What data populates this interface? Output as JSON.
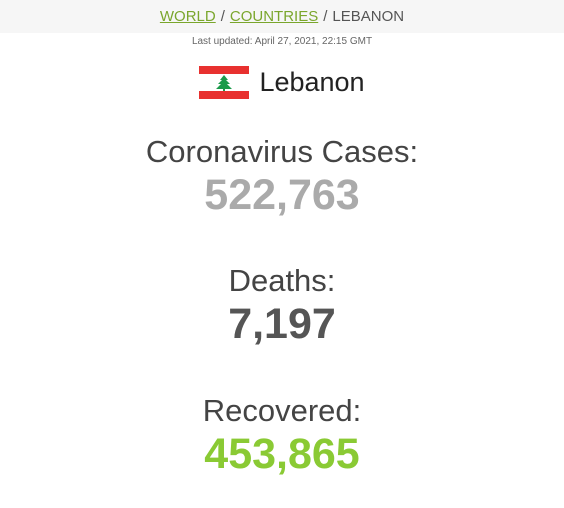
{
  "breadcrumb": {
    "world": "WORLD",
    "countries": "COUNTRIES",
    "current": "LEBANON",
    "separator": "/"
  },
  "last_updated": "Last updated: April 27, 2021, 22:15 GMT",
  "country": {
    "name": "Lebanon",
    "flag_icon": "lebanon-flag-icon"
  },
  "stats": {
    "cases": {
      "label": "Coronavirus Cases:",
      "value": "522,763"
    },
    "deaths": {
      "label": "Deaths:",
      "value": "7,197"
    },
    "recovered": {
      "label": "Recovered:",
      "value": "453,865"
    }
  },
  "colors": {
    "link": "#7aa62c",
    "cases": "#aaaaaa",
    "deaths": "#555555",
    "recovered": "#8aca34",
    "flag_red": "#e8312f",
    "flag_cedar": "#1c9a4b"
  }
}
